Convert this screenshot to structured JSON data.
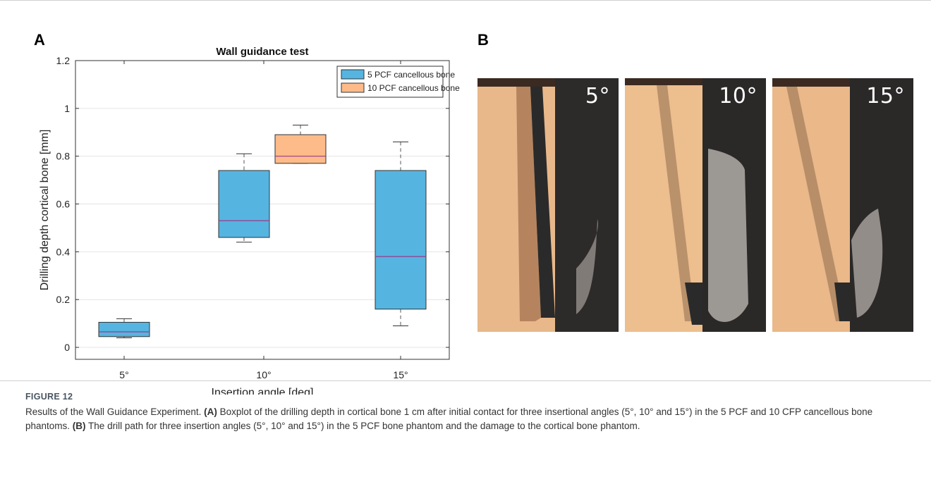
{
  "panels": {
    "a_label": "A",
    "b_label": "B"
  },
  "chart_data": {
    "type": "box",
    "title": "Wall guidance test",
    "xlabel": "Insertion angle [deg]",
    "ylabel": "Drilling depth cortical bone [mm]",
    "ylim": [
      -0.05,
      1.2
    ],
    "yticks": [
      0,
      0.2,
      0.4,
      0.6,
      0.8,
      1,
      1.2
    ],
    "ytick_labels": [
      "0",
      "0.2",
      "0.4",
      "0.6",
      "0.8",
      "1",
      "1.2"
    ],
    "categories": [
      "5°",
      "10°",
      "15°"
    ],
    "grid": true,
    "legend_position": "top-right",
    "series": [
      {
        "name": "5 PCF cancellous bone",
        "color": "#56b4e0",
        "boxes": [
          {
            "category": "5°",
            "min": 0.04,
            "q1": 0.045,
            "median": 0.065,
            "q3": 0.105,
            "max": 0.12
          },
          {
            "category": "10°",
            "min": 0.44,
            "q1": 0.46,
            "median": 0.53,
            "q3": 0.74,
            "max": 0.81
          },
          {
            "category": "15°",
            "min": 0.09,
            "q1": 0.16,
            "median": 0.38,
            "q3": 0.74,
            "max": 0.86
          }
        ]
      },
      {
        "name": "10 PCF cancellous bone",
        "color": "#fdbb8a",
        "boxes": [
          {
            "category": "10°",
            "min": 0.77,
            "q1": 0.77,
            "median": 0.8,
            "q3": 0.89,
            "max": 0.93
          }
        ]
      }
    ]
  },
  "photos": [
    {
      "label": "5°"
    },
    {
      "label": "10°"
    },
    {
      "label": "15°"
    }
  ],
  "caption": {
    "figure_label": "FIGURE 12",
    "line1": "Results of the Wall Guidance Experiment.",
    "a_tag": "(A)",
    "a_text": " Boxplot of the drilling depth in cortical bone 1 cm after initial contact for three insertional angles (5°, 10° and 15°) in the 5 PCF and 10 CFP cancellous bone phantoms. ",
    "b_tag": "(B)",
    "b_text": " The drill path for three insertion angles (5°, 10° and 15°) in the 5 PCF bone phantom and the damage to the cortical bone phantom."
  }
}
